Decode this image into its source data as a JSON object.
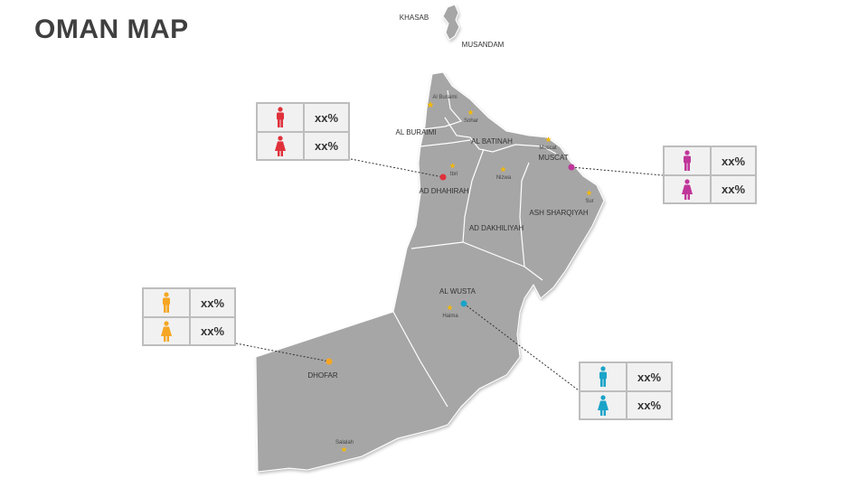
{
  "title": "OMAN MAP",
  "colors": {
    "land": "#a6a6a6",
    "border": "#ffffff",
    "star": "#f5b800",
    "red": "#e0313b",
    "magenta": "#c0369a",
    "orange": "#f5a623",
    "cyan": "#1aa3c8"
  },
  "regions": {
    "khasab": "KHASAB",
    "musandam": "MUSANDAM",
    "al_buraimi": "AL BURAIMI",
    "al_batinah": "AL BATINAH",
    "muscat": "MUSCAT",
    "ad_dhahirah": "AD DHAHIRAH",
    "ad_dakhiliyah": "AD DAKHILIYAH",
    "ash_sharqiyah": "ASH SHARQIYAH",
    "al_wusta": "AL WUSTA",
    "dhofar": "DHOFAR"
  },
  "cities": {
    "al_buraimi": "Al Buraimi",
    "sohar": "Sohar",
    "muscat": "Muscat",
    "ibri": "Ibri",
    "nizwa": "Nizwa",
    "sur": "Sur",
    "haima": "Haima",
    "salalah": "Salalah"
  },
  "callouts": [
    {
      "color": "red",
      "male_value": "xx%",
      "female_value": "xx%"
    },
    {
      "color": "magenta",
      "male_value": "xx%",
      "female_value": "xx%"
    },
    {
      "color": "orange",
      "male_value": "xx%",
      "female_value": "xx%"
    },
    {
      "color": "cyan",
      "male_value": "xx%",
      "female_value": "xx%"
    }
  ]
}
